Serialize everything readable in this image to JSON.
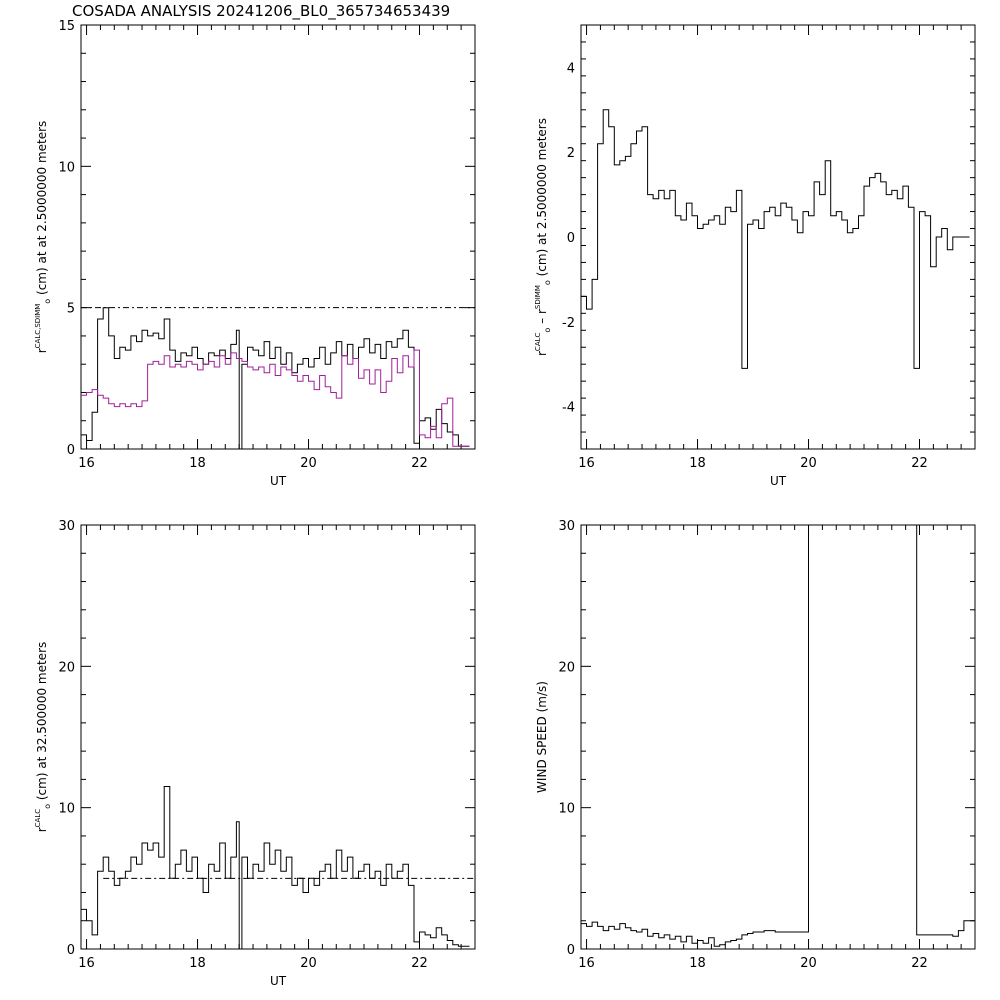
{
  "title": "COSADA ANALYSIS 20241206_BL0_365734653439",
  "colors": {
    "primary": "#000000",
    "secondary": "#a0209a",
    "background": "#ffffff"
  },
  "chart_data": [
    {
      "id": "panel1",
      "type": "line",
      "step": true,
      "xlabel": "UT",
      "ylabel": {
        "r": "r",
        "sub": "o",
        "sup": "CALC,SDIMM",
        "text": "(cm) at  at 2.5000000 meters"
      },
      "xlim": [
        15.9,
        23.0
      ],
      "ylim": [
        0,
        15
      ],
      "xticks": [
        16,
        18,
        20,
        22
      ],
      "yticks": [
        0,
        5,
        10,
        15
      ],
      "hline": {
        "y": 5,
        "style": "dashdot"
      },
      "series": [
        {
          "color": "#000000",
          "x": [
            15.9,
            16.0,
            16.1,
            16.2,
            16.3,
            16.4,
            16.5,
            16.6,
            16.7,
            16.8,
            16.9,
            17.0,
            17.1,
            17.2,
            17.3,
            17.4,
            17.5,
            17.6,
            17.7,
            17.8,
            17.9,
            18.0,
            18.1,
            18.2,
            18.3,
            18.4,
            18.5,
            18.6,
            18.7,
            18.75,
            18.8,
            18.9,
            19.0,
            19.1,
            19.2,
            19.3,
            19.4,
            19.5,
            19.6,
            19.7,
            19.8,
            19.9,
            20.0,
            20.1,
            20.2,
            20.3,
            20.4,
            20.5,
            20.6,
            20.7,
            20.8,
            20.9,
            21.0,
            21.1,
            21.2,
            21.3,
            21.4,
            21.5,
            21.6,
            21.7,
            21.8,
            21.9,
            22.0,
            22.1,
            22.2,
            22.3,
            22.4,
            22.5,
            22.6,
            22.7,
            22.8
          ],
          "y": [
            0.5,
            0.3,
            1.3,
            4.6,
            5.0,
            4.0,
            3.2,
            3.6,
            3.5,
            4.0,
            3.8,
            4.2,
            4.0,
            4.1,
            3.9,
            4.6,
            3.5,
            3.1,
            3.4,
            3.3,
            3.6,
            3.2,
            3.0,
            3.4,
            3.3,
            3.5,
            3.2,
            3.7,
            4.2,
            0,
            3.0,
            3.6,
            3.5,
            3.3,
            3.8,
            3.2,
            3.6,
            3.0,
            3.4,
            2.7,
            3.0,
            3.2,
            2.9,
            3.2,
            3.6,
            3.0,
            3.4,
            3.8,
            3.3,
            3.7,
            3.2,
            3.6,
            3.9,
            3.4,
            3.7,
            3.2,
            3.8,
            3.6,
            3.9,
            4.2,
            3.6,
            0.2,
            1.0,
            1.1,
            0.7,
            1.4,
            0.9,
            0.6,
            0.5,
            0.1,
            0.1
          ]
        },
        {
          "color": "#a0209a",
          "x": [
            15.9,
            16.0,
            16.1,
            16.2,
            16.3,
            16.4,
            16.5,
            16.6,
            16.7,
            16.8,
            16.9,
            17.0,
            17.1,
            17.2,
            17.3,
            17.4,
            17.5,
            17.6,
            17.7,
            17.8,
            17.9,
            18.0,
            18.1,
            18.2,
            18.3,
            18.4,
            18.5,
            18.6,
            18.7,
            18.8,
            18.9,
            19.0,
            19.1,
            19.2,
            19.3,
            19.4,
            19.5,
            19.6,
            19.7,
            19.8,
            19.9,
            20.0,
            20.1,
            20.2,
            20.3,
            20.4,
            20.5,
            20.6,
            20.7,
            20.8,
            20.9,
            21.0,
            21.1,
            21.2,
            21.3,
            21.4,
            21.5,
            21.6,
            21.7,
            21.8,
            21.9,
            22.0,
            22.1,
            22.2,
            22.3,
            22.4,
            22.5,
            22.6,
            22.7,
            22.8
          ],
          "y": [
            1.9,
            2.0,
            2.1,
            1.9,
            1.8,
            1.6,
            1.5,
            1.6,
            1.5,
            1.6,
            1.5,
            1.7,
            3.0,
            3.1,
            3.0,
            3.3,
            2.9,
            3.0,
            2.9,
            3.1,
            3.0,
            2.8,
            3.0,
            3.1,
            2.9,
            3.3,
            3.0,
            3.4,
            3.2,
            3.1,
            2.9,
            2.8,
            2.9,
            2.7,
            3.0,
            2.6,
            2.9,
            2.8,
            2.6,
            2.4,
            2.6,
            2.4,
            2.1,
            2.6,
            2.2,
            2.0,
            1.8,
            3.3,
            3.0,
            3.2,
            2.5,
            2.8,
            2.3,
            2.8,
            2.0,
            2.4,
            3.2,
            2.7,
            3.3,
            2.9,
            3.5,
            0.5,
            0.4,
            0.8,
            0.4,
            1.6,
            1.8,
            0.1,
            0.1,
            0.1
          ]
        }
      ]
    },
    {
      "id": "panel2",
      "type": "line",
      "step": true,
      "xlabel": "UT",
      "ylabel": {
        "r1": "r",
        "sub1": "o",
        "sup1": "CALC",
        "dash": "–",
        "r2": "r",
        "sub2": "o",
        "sup2": "SDIMM",
        "text": "(cm) at 2.5000000 meters"
      },
      "xlim": [
        15.9,
        23.0
      ],
      "ylim": [
        -5,
        5
      ],
      "xticks": [
        16,
        18,
        20,
        22
      ],
      "yticks": [
        -4,
        -2,
        0,
        2,
        4
      ],
      "series": [
        {
          "color": "#000000",
          "x": [
            15.9,
            16.0,
            16.1,
            16.2,
            16.3,
            16.4,
            16.5,
            16.6,
            16.7,
            16.8,
            16.9,
            17.0,
            17.1,
            17.2,
            17.3,
            17.4,
            17.5,
            17.6,
            17.7,
            17.8,
            17.9,
            18.0,
            18.1,
            18.2,
            18.3,
            18.4,
            18.5,
            18.6,
            18.7,
            18.8,
            18.9,
            19.0,
            19.1,
            19.2,
            19.3,
            19.4,
            19.5,
            19.6,
            19.7,
            19.8,
            19.9,
            20.0,
            20.1,
            20.2,
            20.3,
            20.4,
            20.5,
            20.6,
            20.7,
            20.8,
            20.9,
            21.0,
            21.1,
            21.2,
            21.3,
            21.4,
            21.5,
            21.6,
            21.7,
            21.8,
            21.9,
            22.0,
            22.1,
            22.2,
            22.3,
            22.4,
            22.5,
            22.6,
            22.7,
            22.8
          ],
          "y": [
            -1.4,
            -1.7,
            -1.0,
            2.2,
            3.0,
            2.6,
            1.7,
            1.8,
            1.9,
            2.2,
            2.5,
            2.6,
            1.0,
            0.9,
            1.1,
            0.9,
            1.1,
            0.5,
            0.4,
            0.8,
            0.5,
            0.2,
            0.3,
            0.4,
            0.5,
            0.3,
            0.7,
            0.6,
            1.1,
            -3.1,
            0.3,
            0.4,
            0.2,
            0.6,
            0.7,
            0.5,
            0.8,
            0.7,
            0.4,
            0.1,
            0.6,
            0.5,
            1.3,
            1.0,
            1.8,
            0.5,
            0.6,
            0.4,
            0.1,
            0.2,
            0.5,
            1.2,
            1.4,
            1.5,
            1.3,
            1.0,
            1.1,
            0.9,
            1.2,
            0.7,
            -3.1,
            0.6,
            0.5,
            -0.7,
            0.0,
            0.2,
            -0.3,
            0.0,
            0.0,
            0.0
          ]
        }
      ]
    },
    {
      "id": "panel3",
      "type": "line",
      "step": true,
      "xlabel": "UT",
      "ylabel": {
        "r": "r",
        "sub": "o",
        "sup": "CALC",
        "text": "(cm) at 32.500000 meters"
      },
      "xlim": [
        15.9,
        23.0
      ],
      "ylim": [
        0,
        30
      ],
      "xticks": [
        16,
        18,
        20,
        22
      ],
      "yticks": [
        0,
        10,
        20,
        30
      ],
      "hline": {
        "y": 5,
        "x0": 16.3,
        "style": "dashdot"
      },
      "series": [
        {
          "color": "#000000",
          "x": [
            15.9,
            16.0,
            16.1,
            16.2,
            16.3,
            16.4,
            16.5,
            16.6,
            16.7,
            16.8,
            16.9,
            17.0,
            17.1,
            17.2,
            17.3,
            17.4,
            17.5,
            17.6,
            17.7,
            17.8,
            17.9,
            18.0,
            18.1,
            18.2,
            18.3,
            18.4,
            18.5,
            18.6,
            18.7,
            18.75,
            18.8,
            18.9,
            19.0,
            19.1,
            19.2,
            19.3,
            19.4,
            19.5,
            19.6,
            19.7,
            19.8,
            19.9,
            20.0,
            20.1,
            20.2,
            20.3,
            20.4,
            20.5,
            20.6,
            20.7,
            20.8,
            20.9,
            21.0,
            21.1,
            21.2,
            21.3,
            21.4,
            21.5,
            21.6,
            21.7,
            21.8,
            21.9,
            22.0,
            22.1,
            22.2,
            22.3,
            22.4,
            22.5,
            22.6,
            22.7,
            22.8
          ],
          "y": [
            2.8,
            2.0,
            1.0,
            5.5,
            6.5,
            5.5,
            4.5,
            5.0,
            5.5,
            6.5,
            6.0,
            7.5,
            7.0,
            7.5,
            6.5,
            11.5,
            5.0,
            6.0,
            7.0,
            5.5,
            6.5,
            5.0,
            4.0,
            6.0,
            5.5,
            7.5,
            5.0,
            6.5,
            9.0,
            0,
            6.5,
            5.0,
            6.0,
            5.5,
            7.5,
            6.0,
            7.0,
            5.5,
            6.5,
            4.5,
            5.0,
            4.0,
            5.0,
            4.5,
            5.5,
            6.0,
            5.0,
            7.0,
            5.5,
            6.5,
            5.0,
            5.5,
            6.0,
            5.0,
            5.5,
            4.5,
            6.0,
            5.0,
            5.5,
            6.0,
            4.5,
            0.5,
            1.2,
            1.0,
            0.8,
            1.5,
            1.0,
            0.6,
            0.3,
            0.2,
            0.2
          ]
        }
      ]
    },
    {
      "id": "panel4",
      "type": "line",
      "step": true,
      "xlabel": "",
      "ylabel": {
        "text": "WIND SPEED (m/s)"
      },
      "xlim": [
        15.9,
        23.0
      ],
      "ylim": [
        0,
        30
      ],
      "xticks": [
        16,
        18,
        20,
        22
      ],
      "yticks": [
        0,
        10,
        20,
        30
      ],
      "series": [
        {
          "color": "#000000",
          "x": [
            15.9,
            16.0,
            16.1,
            16.2,
            16.3,
            16.4,
            16.5,
            16.6,
            16.7,
            16.8,
            16.9,
            17.0,
            17.1,
            17.2,
            17.3,
            17.4,
            17.5,
            17.6,
            17.7,
            17.8,
            17.9,
            18.0,
            18.1,
            18.2,
            18.3,
            18.4,
            18.5,
            18.6,
            18.7,
            18.8,
            18.9,
            19.0,
            19.2,
            19.4,
            19.6,
            19.8,
            19.95,
            20.0,
            21.9,
            21.95,
            22.0,
            22.2,
            22.4,
            22.6,
            22.7,
            22.8,
            22.9
          ],
          "y": [
            1.8,
            1.6,
            1.9,
            1.6,
            1.3,
            1.6,
            1.4,
            1.8,
            1.5,
            1.3,
            1.2,
            1.4,
            0.9,
            1.1,
            0.8,
            1.0,
            0.7,
            0.9,
            0.5,
            0.9,
            0.4,
            0.6,
            0.4,
            0.8,
            0.2,
            0.3,
            0.5,
            0.6,
            0.7,
            1.0,
            1.1,
            1.2,
            1.3,
            1.2,
            1.2,
            1.2,
            1.2,
            30,
            30,
            1.0,
            1.0,
            1.0,
            1.0,
            0.9,
            1.3,
            2.0,
            2.0
          ]
        }
      ]
    }
  ]
}
